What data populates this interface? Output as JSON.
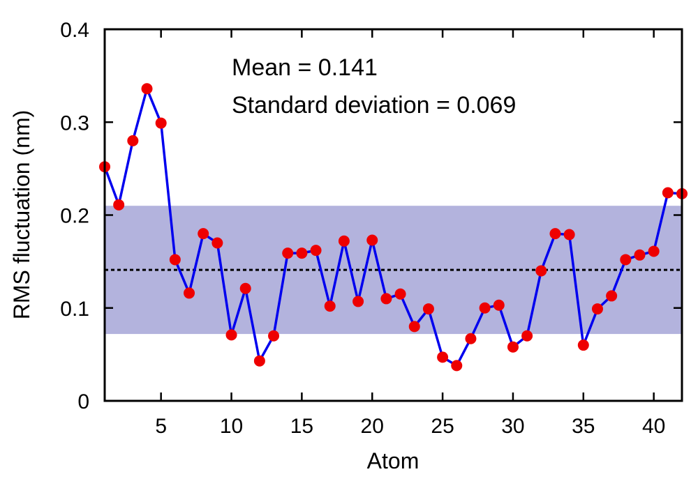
{
  "chart_data": {
    "type": "line",
    "xlabel": "Atom",
    "ylabel": "RMS fluctuation (nm)",
    "xlim": [
      1,
      42
    ],
    "ylim": [
      0,
      0.4
    ],
    "x_ticks": [
      5,
      10,
      15,
      20,
      25,
      30,
      35,
      40
    ],
    "x_tick_labels": [
      "5",
      "10",
      "15",
      "20",
      "25",
      "30",
      "35",
      "40"
    ],
    "y_ticks": [
      0,
      0.1,
      0.2,
      0.3,
      0.4
    ],
    "y_tick_labels": [
      "0",
      "0.1",
      "0.2",
      "0.3",
      "0.4"
    ],
    "mean": 0.141,
    "standard_deviation": 0.069,
    "band": [
      0.072,
      0.21
    ],
    "annotations": [
      "Mean = 0.141",
      "Standard deviation = 0.069"
    ],
    "colors": {
      "line": "#0000ee",
      "marker": "#ee0000",
      "band": "#b3b3dd",
      "mean_line": "#000000"
    },
    "series": [
      {
        "x": [
          1,
          2,
          3,
          4,
          5,
          6,
          7,
          8,
          9,
          10,
          11,
          12,
          13,
          14,
          15,
          16,
          17,
          18,
          19,
          20,
          21,
          22,
          23,
          24,
          25,
          26,
          27,
          28,
          29,
          30,
          31,
          32,
          33,
          34,
          35,
          36,
          37,
          38,
          39,
          40,
          41,
          42
        ],
        "values": [
          0.252,
          0.211,
          0.28,
          0.336,
          0.299,
          0.152,
          0.116,
          0.18,
          0.17,
          0.071,
          0.121,
          0.043,
          0.07,
          0.159,
          0.159,
          0.162,
          0.102,
          0.172,
          0.107,
          0.173,
          0.11,
          0.115,
          0.08,
          0.099,
          0.047,
          0.038,
          0.067,
          0.1,
          0.103,
          0.058,
          0.07,
          0.14,
          0.18,
          0.179,
          0.06,
          0.099,
          0.113,
          0.152,
          0.157,
          0.161,
          0.224,
          0.223
        ]
      }
    ]
  }
}
